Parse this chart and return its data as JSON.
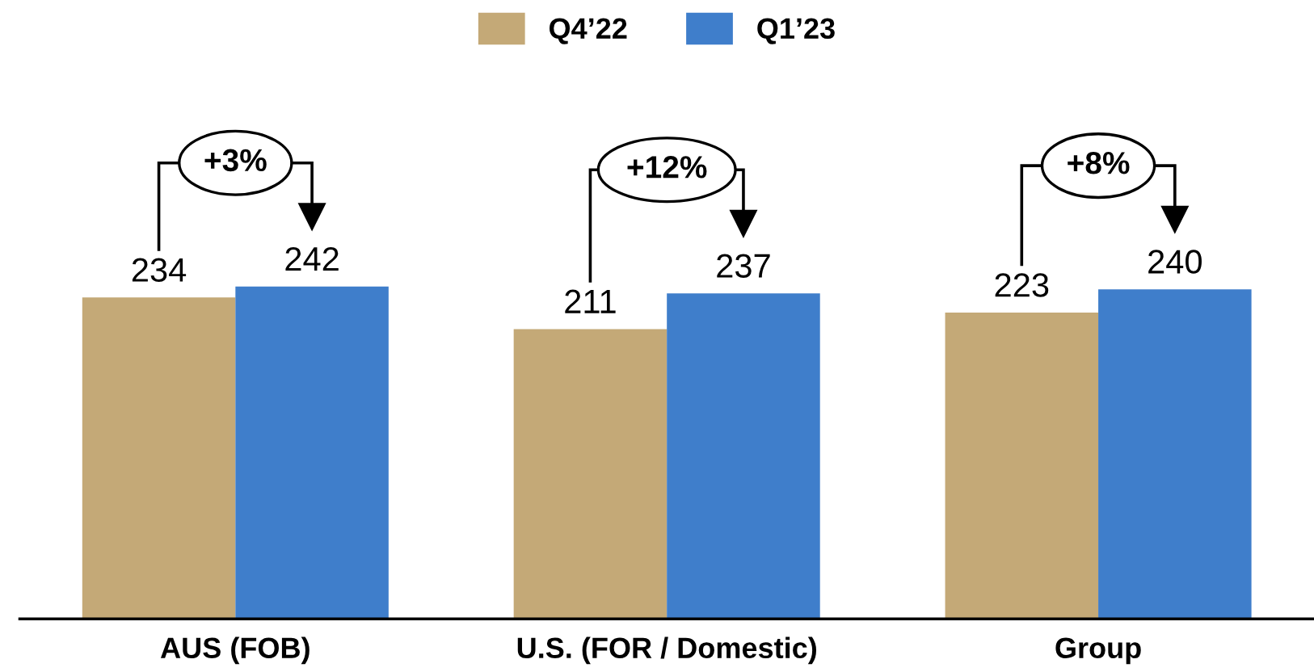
{
  "chart_data": {
    "type": "bar",
    "categories": [
      "AUS (FOB)",
      "U.S. (FOR / Domestic)",
      "Group"
    ],
    "series": [
      {
        "name": "Q4’22",
        "color": "#c4a977",
        "values": [
          234,
          211,
          223
        ]
      },
      {
        "name": "Q1’23",
        "color": "#3f7ecb",
        "values": [
          242,
          237,
          240
        ]
      }
    ],
    "tick_labels": "x",
    "data_labels": true,
    "legend": "top",
    "grid": false,
    "annotations": [
      "+3%",
      "+12%",
      "+8%"
    ]
  }
}
